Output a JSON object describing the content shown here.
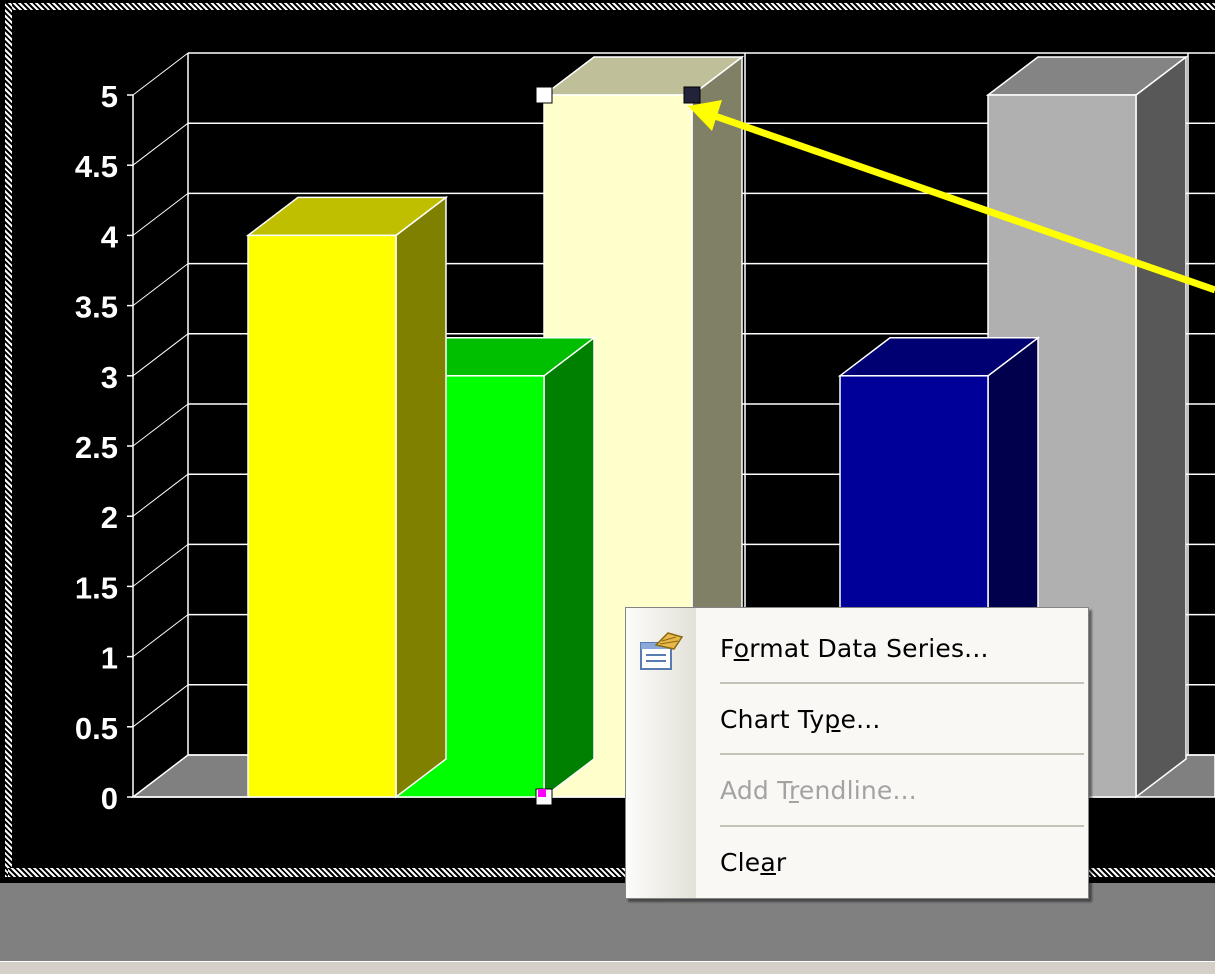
{
  "chart_data": {
    "type": "bar",
    "style": "3d-clustered-column",
    "background": "#000000",
    "gridlines": true,
    "ylim": [
      0,
      5
    ],
    "y_ticks": [
      "0",
      "0.5",
      "1",
      "1.5",
      "2",
      "2.5",
      "3",
      "3.5",
      "4",
      "4.5",
      "5"
    ],
    "groups": [
      {
        "bars": [
          {
            "value": 4,
            "color": "#ffff00"
          },
          {
            "value": 3,
            "color": "#00ff00"
          },
          {
            "value": 5,
            "color": "#ffffcc"
          }
        ]
      },
      {
        "bars": [
          {
            "value": 3,
            "color": "#000099"
          },
          {
            "value": 5,
            "color": "#b0b0b0"
          }
        ]
      }
    ]
  },
  "context_menu": {
    "items": [
      {
        "pre": "F",
        "key": "o",
        "post": "rmat Data Series...",
        "enabled": true,
        "icon": "format-data-series-icon"
      },
      {
        "pre": "Chart Ty",
        "key": "p",
        "post": "e...",
        "enabled": true
      },
      {
        "pre": "Add T",
        "key": "r",
        "post": "endline...",
        "enabled": false
      },
      {
        "pre": "Cle",
        "key": "a",
        "post": "r",
        "enabled": true
      }
    ]
  },
  "annotation": {
    "arrow_color": "#ffff00"
  }
}
